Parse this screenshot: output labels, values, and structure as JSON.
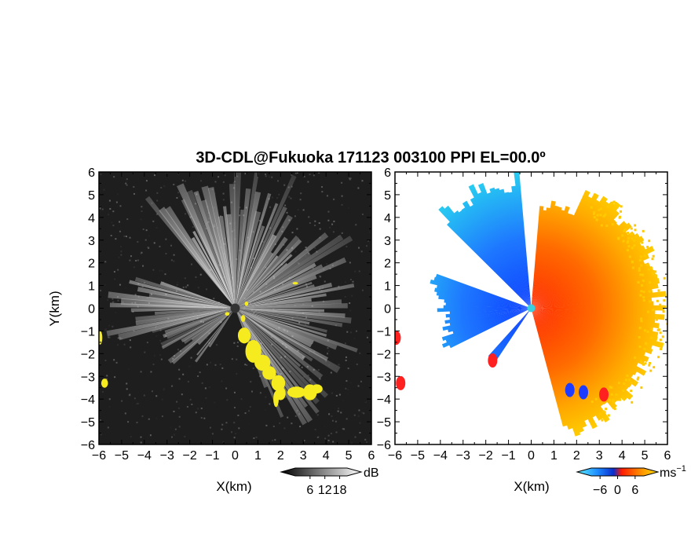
{
  "title": "3D-CDL@Fukuoka 171123 003100 PPI EL=00.0º",
  "colors": {
    "background_left": "#1e1e1e",
    "clutter_yellow": "#f5eb1e",
    "velocity_negative": "#1464ff",
    "velocity_positive": "#ff5a00",
    "velocity_far_positive": "#ffc800",
    "radar_site": "#3ccfe0"
  },
  "chart_data": [
    {
      "type": "heatmap",
      "panel": "backscatter",
      "xlabel": "X(km)",
      "ylabel": "Y(km)",
      "xlim": [
        -6,
        6
      ],
      "ylim": [
        -6,
        6
      ],
      "xticks": [
        "−6",
        "−5",
        "−4",
        "−3",
        "−2",
        "−1",
        "0",
        "1",
        "2",
        "3",
        "4",
        "5",
        "6"
      ],
      "yticks": [
        "6",
        "5",
        "4",
        "3",
        "2",
        "1",
        "0",
        "−1",
        "−2",
        "−3",
        "−4",
        "−5",
        "−6"
      ],
      "colorbar": {
        "unit": "dB",
        "tick_labels": [
          "6",
          "12",
          "18"
        ],
        "tick_values": [
          6,
          12,
          18
        ],
        "range": [
          0,
          21
        ],
        "colormap": "grayscale"
      },
      "radar_site": [
        0,
        0
      ],
      "clutter_color": "yellow"
    },
    {
      "type": "heatmap",
      "panel": "radial-velocity",
      "xlabel": "X(km)",
      "xlim": [
        -6,
        6
      ],
      "ylim": [
        -6,
        6
      ],
      "xticks": [
        "−6",
        "−5",
        "−4",
        "−3",
        "−2",
        "−1",
        "0",
        "1",
        "2",
        "3",
        "4",
        "5",
        "6"
      ],
      "yticks": [
        "6",
        "5",
        "4",
        "3",
        "2",
        "1",
        "0",
        "−1",
        "−2",
        "−3",
        "−4",
        "−5",
        "−6"
      ],
      "colorbar": {
        "unit": "ms",
        "unit_superscript": "−1",
        "tick_labels": [
          "−6",
          "0",
          "6"
        ],
        "tick_values": [
          -6,
          0,
          6
        ],
        "range": [
          -9,
          9
        ],
        "colormap": "cyan-blue-red-orange-yellow"
      },
      "radar_site": [
        0,
        0
      ],
      "site_color": "cyan"
    }
  ]
}
